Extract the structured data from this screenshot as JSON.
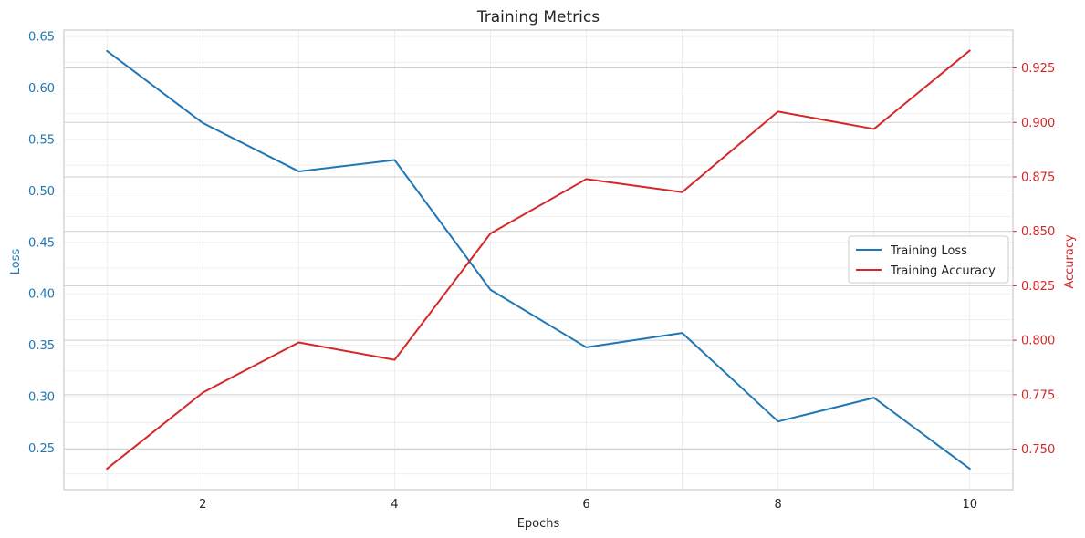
{
  "colors": {
    "loss": "#1f77b4",
    "accuracy": "#d62728",
    "grid": "#ebebeb",
    "spine": "#cccccc",
    "text": "#262626"
  },
  "chart_data": {
    "type": "line",
    "title": "Training Metrics",
    "xlabel": "Epochs",
    "ylabel_left": "Loss",
    "ylabel_right": "Accuracy",
    "x": [
      1,
      2,
      3,
      4,
      5,
      6,
      7,
      8,
      9,
      10
    ],
    "xlim": [
      0.55,
      10.45
    ],
    "x_ticks": [
      2,
      4,
      6,
      8,
      10
    ],
    "x_tick_labels": [
      "2",
      "4",
      "6",
      "8",
      "10"
    ],
    "left_axis": {
      "ylim": [
        0.2097,
        0.6563
      ],
      "ticks": [
        0.25,
        0.3,
        0.35,
        0.4,
        0.45,
        0.5,
        0.55,
        0.6,
        0.65
      ],
      "tick_labels": [
        "0.25",
        "0.30",
        "0.35",
        "0.40",
        "0.45",
        "0.50",
        "0.55",
        "0.60",
        "0.65"
      ]
    },
    "right_axis": {
      "ylim": [
        0.7314,
        0.9424
      ],
      "ticks": [
        0.75,
        0.775,
        0.8,
        0.825,
        0.85,
        0.875,
        0.9,
        0.925
      ],
      "tick_labels": [
        "0.750",
        "0.775",
        "0.800",
        "0.825",
        "0.850",
        "0.875",
        "0.900",
        "0.925"
      ]
    },
    "series": [
      {
        "name": "Training Loss",
        "axis": "left",
        "values": [
          0.636,
          0.566,
          0.519,
          0.53,
          0.404,
          0.348,
          0.362,
          0.276,
          0.299,
          0.23
        ]
      },
      {
        "name": "Training Accuracy",
        "axis": "right",
        "values": [
          0.741,
          0.776,
          0.799,
          0.791,
          0.849,
          0.874,
          0.868,
          0.905,
          0.897,
          0.933
        ]
      }
    ],
    "grid": true,
    "legend": "center-right"
  }
}
